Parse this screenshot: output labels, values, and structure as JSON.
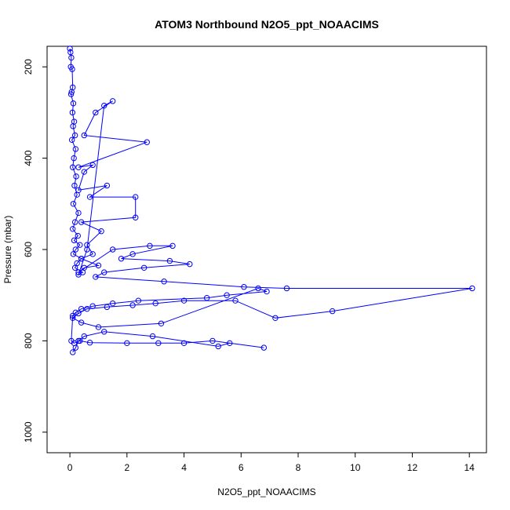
{
  "chart_data": {
    "type": "scatter",
    "title": "ATOM3 Northbound N2O5_ppt_NOAACIMS",
    "xlabel": "N2O5_ppt_NOAACIMS",
    "ylabel": "Pressure (mbar)",
    "xlim": [
      -0.8,
      14.6
    ],
    "ylim": [
      1045,
      155
    ],
    "y_inverted": true,
    "x_ticks": [
      0,
      2,
      4,
      6,
      8,
      10,
      12,
      14
    ],
    "y_ticks": [
      200,
      400,
      600,
      800,
      1000
    ],
    "grid": false,
    "legend": "none",
    "color": "#0000ff",
    "series": [
      {
        "x": [
          0.0,
          0.02,
          0.05,
          0.03,
          0.08,
          0.1,
          0.06,
          0.04,
          0.12,
          0.09,
          0.15,
          0.11,
          0.18,
          0.07,
          0.2,
          0.14,
          0.1,
          0.22,
          0.16,
          0.25,
          0.12,
          0.3,
          0.18,
          0.1,
          0.28,
          0.15,
          0.35,
          0.2,
          0.12,
          0.4,
          0.25,
          0.18,
          0.45,
          0.3,
          0.6,
          1.2,
          1.5,
          0.9,
          0.5,
          2.7,
          0.3,
          0.8,
          0.5,
          0.3,
          1.3,
          0.7,
          2.3,
          2.3,
          0.4,
          1.1,
          0.6,
          0.8,
          0.4,
          1.0,
          0.5,
          0.3,
          1.5,
          2.8,
          3.6,
          2.2,
          1.8,
          3.5,
          4.2,
          2.6,
          1.2,
          0.9,
          3.3,
          6.1,
          7.6,
          14.1,
          9.2,
          7.2,
          5.8,
          4.0,
          3.0,
          2.2,
          1.3,
          0.6,
          0.3,
          0.1,
          0.4,
          1.0,
          3.2,
          6.6,
          6.9,
          5.5,
          4.8,
          2.4,
          1.5,
          0.8,
          0.4,
          0.2,
          0.1,
          0.05,
          0.15,
          0.35,
          0.7,
          2.0,
          3.1,
          4.0,
          5.0,
          6.8,
          5.6,
          5.2,
          2.9,
          1.2,
          0.5,
          0.3,
          0.2,
          0.1
        ],
        "y": [
          160,
          168,
          180,
          200,
          205,
          245,
          255,
          260,
          280,
          300,
          320,
          330,
          350,
          360,
          380,
          400,
          420,
          440,
          460,
          480,
          500,
          520,
          540,
          555,
          570,
          580,
          590,
          600,
          610,
          620,
          630,
          640,
          650,
          655,
          600,
          285,
          275,
          300,
          350,
          365,
          420,
          415,
          430,
          470,
          460,
          485,
          485,
          530,
          540,
          560,
          590,
          610,
          620,
          635,
          640,
          650,
          600,
          592,
          592,
          610,
          620,
          625,
          632,
          640,
          650,
          660,
          670,
          682,
          685,
          685,
          735,
          750,
          712,
          712,
          718,
          722,
          726,
          730,
          740,
          750,
          760,
          770,
          762,
          685,
          692,
          700,
          706,
          712,
          718,
          724,
          730,
          738,
          745,
          800,
          805,
          800,
          804,
          805,
          805,
          805,
          800,
          815,
          805,
          812,
          790,
          780,
          790,
          800,
          815,
          825
        ]
      }
    ]
  }
}
